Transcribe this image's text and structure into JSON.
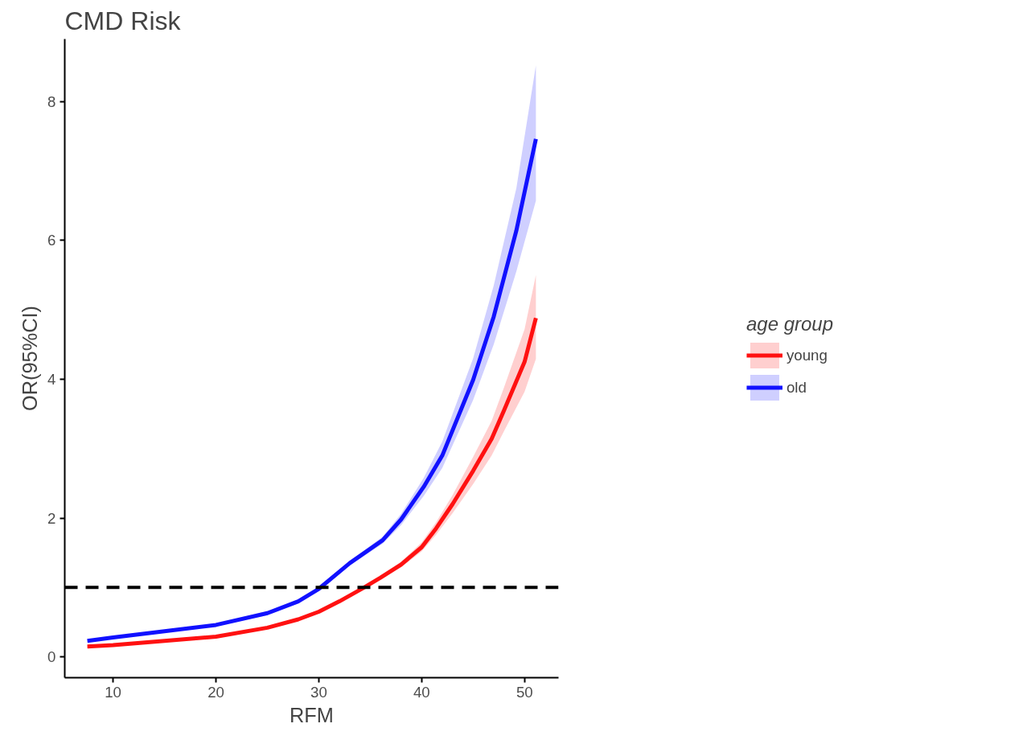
{
  "chart_data": {
    "type": "line",
    "title": "CMD Risk",
    "xlabel": "RFM",
    "ylabel": "OR(95%CI)",
    "legend_title": "age group",
    "legend": "right",
    "grid": false,
    "line_style": "solid",
    "marker": "none",
    "xlim": [
      5.3,
      53.3
    ],
    "ylim": [
      -0.3,
      8.9
    ],
    "xticks": [
      10,
      20,
      30,
      40,
      50
    ],
    "yticks": [
      0,
      2,
      4,
      6,
      8
    ],
    "ref_lines": [
      {
        "axis": "y",
        "value": 1,
        "label": null,
        "color": "#000000",
        "line_style": "dashed"
      }
    ],
    "series": [
      {
        "name": "young",
        "color": "#ff1111",
        "x": [
          7.5,
          10,
          15,
          20,
          25,
          28,
          30,
          32,
          34.3,
          36,
          38,
          40,
          41.4,
          43,
          45,
          46.8,
          48,
          50,
          51.1
        ],
        "values": [
          0.15,
          0.17,
          0.23,
          0.29,
          0.42,
          0.54,
          0.65,
          0.8,
          0.99,
          1.14,
          1.33,
          1.58,
          1.85,
          2.2,
          2.68,
          3.14,
          3.55,
          4.25,
          4.88
        ],
        "lower": [
          0.13,
          0.15,
          0.21,
          0.27,
          0.4,
          0.52,
          0.63,
          0.78,
          0.97,
          1.12,
          1.29,
          1.52,
          1.76,
          2.07,
          2.49,
          2.9,
          3.25,
          3.82,
          4.29
        ],
        "upper": [
          0.17,
          0.19,
          0.25,
          0.31,
          0.44,
          0.56,
          0.67,
          0.82,
          1.01,
          1.17,
          1.37,
          1.65,
          1.94,
          2.33,
          2.88,
          3.4,
          3.88,
          4.72,
          5.5
        ]
      },
      {
        "name": "old",
        "color": "#1111ff",
        "x": [
          7.5,
          10,
          15,
          20,
          25,
          28,
          30,
          33,
          36.2,
          38,
          40.2,
          42,
          45,
          47,
          49.2,
          51.1
        ],
        "values": [
          0.23,
          0.28,
          0.37,
          0.46,
          0.63,
          0.8,
          0.98,
          1.35,
          1.68,
          1.98,
          2.45,
          2.9,
          3.99,
          4.9,
          6.14,
          7.46
        ],
        "lower": [
          0.21,
          0.26,
          0.35,
          0.44,
          0.6,
          0.77,
          0.95,
          1.32,
          1.63,
          1.9,
          2.32,
          2.72,
          3.7,
          4.5,
          5.55,
          6.57
        ],
        "upper": [
          0.25,
          0.3,
          0.39,
          0.48,
          0.66,
          0.83,
          1.01,
          1.38,
          1.73,
          2.06,
          2.58,
          3.1,
          4.3,
          5.35,
          6.75,
          8.52
        ]
      }
    ]
  }
}
